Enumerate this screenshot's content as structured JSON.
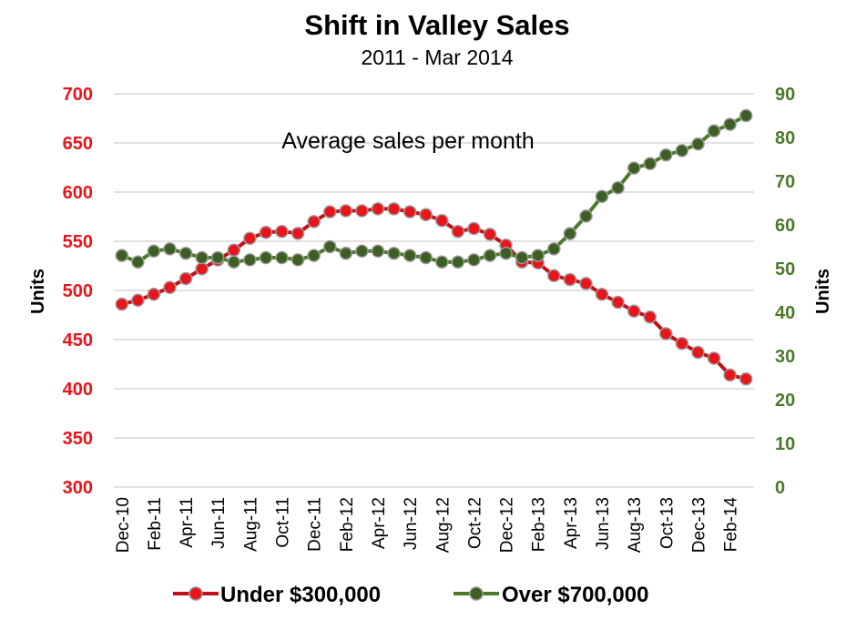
{
  "chart_data": {
    "type": "line",
    "title": "Shift in Valley Sales",
    "subtitle": "2011 - Mar 2014",
    "annotation": "Average sales per month",
    "ylabel_left": "Units",
    "ylabel_right": "Units",
    "ylim_left": [
      300,
      700
    ],
    "yticks_left": [
      "300",
      "350",
      "400",
      "450",
      "500",
      "550",
      "600",
      "650",
      "700"
    ],
    "ylim_right": [
      0,
      90
    ],
    "yticks_right": [
      "0",
      "10",
      "20",
      "30",
      "40",
      "50",
      "60",
      "70",
      "80",
      "90"
    ],
    "x": [
      "Dec-10",
      "Jan-11",
      "Feb-11",
      "Mar-11",
      "Apr-11",
      "May-11",
      "Jun-11",
      "Jul-11",
      "Aug-11",
      "Sep-11",
      "Oct-11",
      "Nov-11",
      "Dec-11",
      "Jan-12",
      "Feb-12",
      "Mar-12",
      "Apr-12",
      "May-12",
      "Jun-12",
      "Jul-12",
      "Aug-12",
      "Sep-12",
      "Oct-12",
      "Nov-12",
      "Dec-12",
      "Jan-13",
      "Feb-13",
      "Mar-13",
      "Apr-13",
      "May-13",
      "Jun-13",
      "Jul-13",
      "Aug-13",
      "Sep-13",
      "Oct-13",
      "Nov-13",
      "Dec-13",
      "Jan-14",
      "Feb-14",
      "Mar-14"
    ],
    "xtick_labels": [
      "Dec-10",
      "Feb-11",
      "Apr-11",
      "Jun-11",
      "Aug-11",
      "Oct-11",
      "Dec-11",
      "Feb-12",
      "Apr-12",
      "Jun-12",
      "Aug-12",
      "Oct-12",
      "Dec-12",
      "Feb-13",
      "Apr-13",
      "Jun-13",
      "Aug-13",
      "Oct-13",
      "Dec-13",
      "Feb-14"
    ],
    "grid": true,
    "legend_position": "bottom",
    "series": [
      {
        "name": "Under $300,000",
        "axis": "left",
        "color": "#c0111a",
        "marker_color": "#e8151b",
        "values": [
          486,
          490,
          496,
          503,
          512,
          522,
          531,
          541,
          553,
          559,
          560,
          558,
          570,
          580,
          581,
          581,
          583,
          583,
          580,
          577,
          571,
          560,
          563,
          557,
          546,
          529,
          528,
          515,
          511,
          507,
          496,
          488,
          479,
          473,
          456,
          446,
          437,
          431,
          414,
          410
        ]
      },
      {
        "name": "Over $700,000",
        "axis": "right",
        "color": "#4b7a2a",
        "marker_color": "#3d5f22",
        "values": [
          53,
          51.5,
          54,
          54.5,
          53.5,
          52.5,
          52.5,
          51.5,
          52,
          52.5,
          52.5,
          52,
          53,
          55,
          53.5,
          54,
          54,
          53.5,
          53,
          52.5,
          51.5,
          51.5,
          52,
          53,
          53.5,
          52.5,
          53,
          54.5,
          58,
          62,
          66.5,
          68.5,
          73,
          74,
          76,
          77,
          78.5,
          81.5,
          83,
          85
        ]
      }
    ]
  }
}
